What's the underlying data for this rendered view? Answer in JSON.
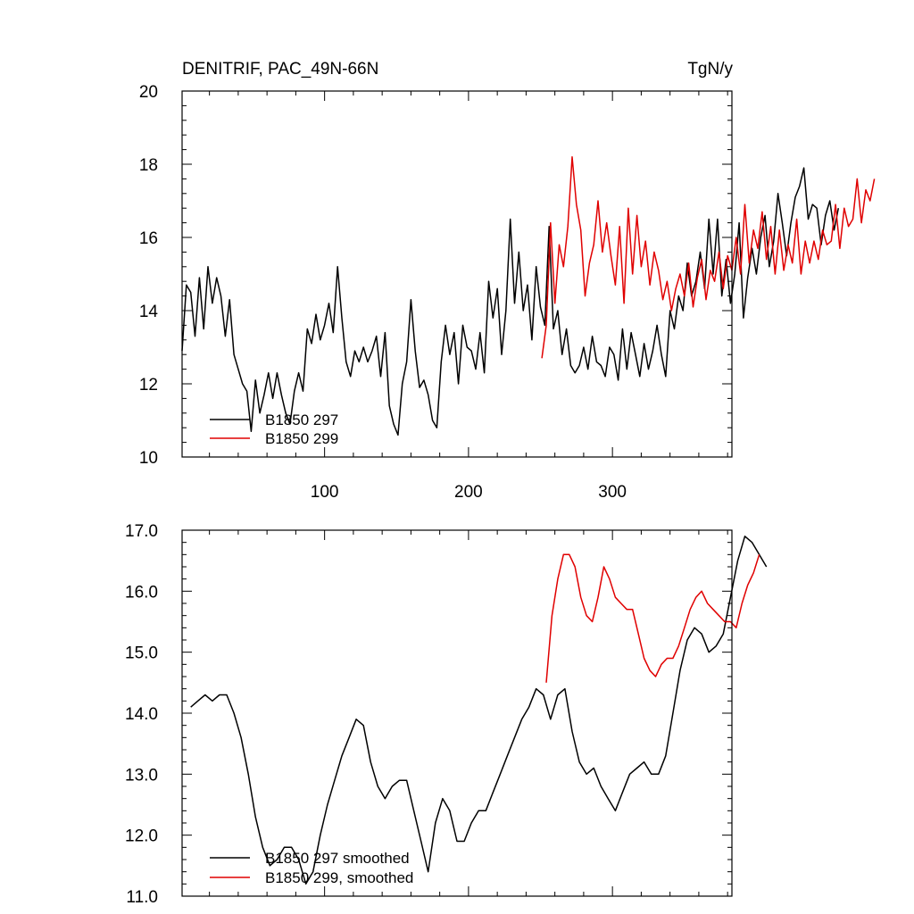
{
  "colors": {
    "series_297": "#000000",
    "series_299": "#e00000",
    "axis": "#000000",
    "background": "#ffffff"
  },
  "chart_data": [
    {
      "type": "line",
      "title": "DENITRIF, PAC_49N-66N",
      "units": "TgN/y",
      "xlim": [
        1,
        383
      ],
      "ylim": [
        10,
        20
      ],
      "x_ticks": [
        100,
        200,
        300
      ],
      "y_ticks": [
        10,
        12,
        14,
        16,
        18,
        20
      ],
      "y_tick_labels": [
        "10",
        "12",
        "14",
        "16",
        "18",
        "20"
      ],
      "legend": {
        "placement": "bottom-left",
        "entries": [
          "B1850 297",
          "B1850 299"
        ]
      },
      "series": [
        {
          "name": "B1850 297",
          "color": "#000000",
          "x_start": 1,
          "x_step": 3,
          "values": [
            12.9,
            14.7,
            14.5,
            13.3,
            14.9,
            13.5,
            15.2,
            14.2,
            14.9,
            14.4,
            13.3,
            14.3,
            12.8,
            12.4,
            12.0,
            11.8,
            10.7,
            12.1,
            11.2,
            11.7,
            12.3,
            11.6,
            12.3,
            11.7,
            11.2,
            10.9,
            11.8,
            12.3,
            11.8,
            13.5,
            13.1,
            13.9,
            13.2,
            13.6,
            14.2,
            13.4,
            15.2,
            13.8,
            12.6,
            12.2,
            12.9,
            12.6,
            13.0,
            12.6,
            12.9,
            13.3,
            12.2,
            13.4,
            11.4,
            10.9,
            10.6,
            12.0,
            12.6,
            14.3,
            12.9,
            11.9,
            12.1,
            11.7,
            11.0,
            10.8,
            12.6,
            13.6,
            12.8,
            13.4,
            12.0,
            13.6,
            13.0,
            12.9,
            12.4,
            13.4,
            12.3,
            14.8,
            13.8,
            14.6,
            12.8,
            14.0,
            16.5,
            14.2,
            15.6,
            14.0,
            14.7,
            13.2,
            15.2,
            14.1,
            13.6,
            16.3,
            13.5,
            14.0,
            12.8,
            13.5,
            12.5,
            12.3,
            12.5,
            13.0,
            12.4,
            13.3,
            12.6,
            12.5,
            12.2,
            13.0,
            12.8,
            12.1,
            13.5,
            12.4,
            13.4,
            12.8,
            12.2,
            13.1,
            12.4,
            12.9,
            13.6,
            12.8,
            12.2,
            14.0,
            13.5,
            14.4,
            14.0,
            15.3,
            14.4,
            14.8,
            15.6,
            14.6,
            16.5,
            15.0,
            16.5,
            14.4,
            15.4,
            14.2,
            15.0,
            16.4,
            13.8,
            14.9,
            15.7,
            15.0,
            16.0,
            16.6,
            15.2,
            15.9,
            17.2,
            16.4,
            15.5,
            16.4,
            17.1,
            17.4,
            17.9,
            16.5,
            16.9,
            16.8,
            15.8,
            16.6,
            17.0,
            16.2,
            16.8
          ]
        },
        {
          "name": "B1850 299",
          "color": "#e00000",
          "x_start": 251,
          "x_step": 3,
          "values": [
            12.7,
            13.6,
            16.4,
            14.2,
            15.8,
            15.2,
            16.3,
            18.2,
            16.9,
            16.2,
            14.4,
            15.3,
            15.8,
            17.0,
            15.6,
            16.4,
            15.5,
            14.7,
            16.3,
            14.2,
            16.8,
            15.0,
            16.6,
            15.2,
            15.9,
            14.7,
            15.6,
            15.1,
            14.3,
            14.8,
            14.0,
            14.6,
            15.0,
            14.4,
            15.3,
            14.1,
            14.9,
            15.4,
            14.3,
            15.1,
            14.8,
            15.6,
            14.6,
            15.5,
            15.1,
            16.0,
            15.0,
            16.9,
            15.3,
            16.2,
            15.7,
            16.7,
            15.4,
            16.3,
            15.0,
            16.2,
            15.1,
            15.8,
            15.3,
            16.5,
            15.0,
            15.9,
            15.3,
            15.9,
            15.4,
            16.2,
            15.8,
            15.9,
            16.9,
            15.7,
            16.8,
            16.3,
            16.5,
            17.6,
            16.4,
            17.3,
            17.0,
            17.6
          ]
        }
      ]
    },
    {
      "type": "line",
      "title": "",
      "xlim": [
        1,
        383
      ],
      "ylim": [
        11.0,
        17.0
      ],
      "x_ticks": [
        100,
        200,
        300
      ],
      "y_ticks": [
        11.0,
        12.0,
        13.0,
        14.0,
        15.0,
        16.0,
        17.0
      ],
      "y_tick_labels": [
        "11.0",
        "12.0",
        "13.0",
        "14.0",
        "15.0",
        "16.0",
        "17.0"
      ],
      "legend": {
        "placement": "bottom-left",
        "entries": [
          "B1850 297 smoothed",
          "B1850 299, smoothed"
        ]
      },
      "series": [
        {
          "name": "B1850 297 smoothed",
          "color": "#000000",
          "x_start": 7,
          "x_step": 5,
          "values": [
            14.1,
            14.2,
            14.3,
            14.2,
            14.3,
            14.3,
            14.0,
            13.6,
            13.0,
            12.3,
            11.8,
            11.5,
            11.6,
            11.8,
            11.8,
            11.6,
            11.2,
            11.4,
            12.0,
            12.5,
            12.9,
            13.3,
            13.6,
            13.9,
            13.8,
            13.2,
            12.8,
            12.6,
            12.8,
            12.9,
            12.9,
            12.4,
            11.9,
            11.4,
            12.2,
            12.6,
            12.4,
            11.9,
            11.9,
            12.2,
            12.4,
            12.4,
            12.7,
            13.0,
            13.3,
            13.6,
            13.9,
            14.1,
            14.4,
            14.3,
            13.9,
            14.3,
            14.4,
            13.7,
            13.2,
            13.0,
            13.1,
            12.8,
            12.6,
            12.4,
            12.7,
            13.0,
            13.1,
            13.2,
            13.0,
            13.0,
            13.3,
            14.0,
            14.7,
            15.2,
            15.4,
            15.3,
            15.0,
            15.1,
            15.3,
            15.9,
            16.5,
            16.9,
            16.8,
            16.6,
            16.4
          ]
        },
        {
          "name": "B1850 299, smoothed",
          "color": "#e00000",
          "x_start": 254,
          "x_step": 4,
          "values": [
            14.5,
            15.6,
            16.2,
            16.6,
            16.6,
            16.4,
            15.9,
            15.6,
            15.5,
            15.9,
            16.4,
            16.2,
            15.9,
            15.8,
            15.7,
            15.7,
            15.3,
            14.9,
            14.7,
            14.6,
            14.8,
            14.9,
            14.9,
            15.1,
            15.4,
            15.7,
            15.9,
            16.0,
            15.8,
            15.7,
            15.6,
            15.5,
            15.5,
            15.4,
            15.8,
            16.1,
            16.3,
            16.6
          ]
        }
      ]
    }
  ]
}
